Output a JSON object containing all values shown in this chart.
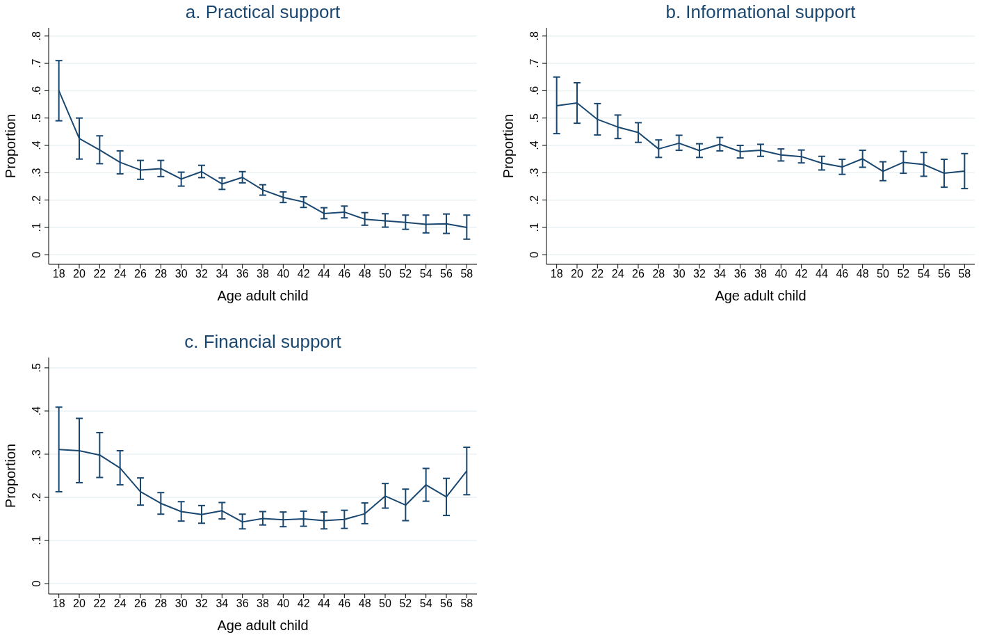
{
  "chart_data": [
    {
      "type": "line",
      "title": "a. Practical support",
      "xlabel": "Age adult child",
      "ylabel": "Proportion",
      "x": [
        18,
        20,
        22,
        24,
        26,
        28,
        30,
        32,
        34,
        36,
        38,
        40,
        42,
        44,
        46,
        48,
        50,
        52,
        54,
        56,
        58
      ],
      "xlim": [
        17,
        59
      ],
      "xticks": [
        18,
        20,
        22,
        24,
        26,
        28,
        30,
        32,
        34,
        36,
        38,
        40,
        42,
        44,
        46,
        48,
        50,
        52,
        54,
        56,
        58
      ],
      "ylim": [
        -0.035,
        0.83
      ],
      "yticks": [
        {
          "value": 0,
          "label": "0"
        },
        {
          "value": 0.1,
          "label": ".1"
        },
        {
          "value": 0.2,
          "label": ".2"
        },
        {
          "value": 0.3,
          "label": ".3"
        },
        {
          "value": 0.4,
          "label": ".4"
        },
        {
          "value": 0.5,
          "label": ".5"
        },
        {
          "value": 0.6,
          "label": ".6"
        },
        {
          "value": 0.7,
          "label": ".7"
        },
        {
          "value": 0.8,
          "label": ".8"
        }
      ],
      "grid": "y",
      "marker": "none",
      "line_style": "solid",
      "legend": false,
      "series": [
        {
          "color": "#1a476f",
          "values": [
            0.6,
            0.425,
            0.383,
            0.338,
            0.31,
            0.315,
            0.277,
            0.304,
            0.259,
            0.283,
            0.237,
            0.21,
            0.193,
            0.151,
            0.156,
            0.13,
            0.124,
            0.118,
            0.111,
            0.113,
            0.1
          ],
          "errors": [
            [
              0.49,
              0.71
            ],
            [
              0.35,
              0.5
            ],
            [
              0.333,
              0.435
            ],
            [
              0.296,
              0.38
            ],
            [
              0.276,
              0.345
            ],
            [
              0.286,
              0.345
            ],
            [
              0.251,
              0.302
            ],
            [
              0.282,
              0.327
            ],
            [
              0.239,
              0.281
            ],
            [
              0.263,
              0.304
            ],
            [
              0.218,
              0.256
            ],
            [
              0.191,
              0.23
            ],
            [
              0.173,
              0.212
            ],
            [
              0.132,
              0.172
            ],
            [
              0.135,
              0.178
            ],
            [
              0.108,
              0.154
            ],
            [
              0.101,
              0.15
            ],
            [
              0.093,
              0.145
            ],
            [
              0.08,
              0.145
            ],
            [
              0.078,
              0.149
            ],
            [
              0.057,
              0.145
            ]
          ]
        }
      ]
    },
    {
      "type": "line",
      "title": "b. Informational support",
      "xlabel": "Age adult child",
      "ylabel": "Proportion",
      "x": [
        18,
        20,
        22,
        24,
        26,
        28,
        30,
        32,
        34,
        36,
        38,
        40,
        42,
        44,
        46,
        48,
        50,
        52,
        54,
        56,
        58
      ],
      "xlim": [
        17,
        59
      ],
      "xticks": [
        18,
        20,
        22,
        24,
        26,
        28,
        30,
        32,
        34,
        36,
        38,
        40,
        42,
        44,
        46,
        48,
        50,
        52,
        54,
        56,
        58
      ],
      "ylim": [
        -0.035,
        0.83
      ],
      "yticks": [
        {
          "value": 0,
          "label": "0"
        },
        {
          "value": 0.1,
          "label": ".1"
        },
        {
          "value": 0.2,
          "label": ".2"
        },
        {
          "value": 0.3,
          "label": ".3"
        },
        {
          "value": 0.4,
          "label": ".4"
        },
        {
          "value": 0.5,
          "label": ".5"
        },
        {
          "value": 0.6,
          "label": ".6"
        },
        {
          "value": 0.7,
          "label": ".7"
        },
        {
          "value": 0.8,
          "label": ".8"
        }
      ],
      "grid": "y",
      "marker": "none",
      "line_style": "solid",
      "legend": false,
      "series": [
        {
          "color": "#1a476f",
          "values": [
            0.545,
            0.555,
            0.495,
            0.467,
            0.447,
            0.387,
            0.408,
            0.381,
            0.404,
            0.377,
            0.382,
            0.365,
            0.359,
            0.335,
            0.321,
            0.351,
            0.305,
            0.338,
            0.33,
            0.298,
            0.306
          ],
          "errors": [
            [
              0.443,
              0.65
            ],
            [
              0.481,
              0.629
            ],
            [
              0.438,
              0.553
            ],
            [
              0.425,
              0.511
            ],
            [
              0.411,
              0.483
            ],
            [
              0.356,
              0.42
            ],
            [
              0.382,
              0.437
            ],
            [
              0.356,
              0.406
            ],
            [
              0.38,
              0.429
            ],
            [
              0.354,
              0.4
            ],
            [
              0.36,
              0.404
            ],
            [
              0.343,
              0.387
            ],
            [
              0.336,
              0.383
            ],
            [
              0.31,
              0.36
            ],
            [
              0.294,
              0.349
            ],
            [
              0.32,
              0.382
            ],
            [
              0.271,
              0.34
            ],
            [
              0.298,
              0.378
            ],
            [
              0.287,
              0.374
            ],
            [
              0.247,
              0.349
            ],
            [
              0.242,
              0.37
            ]
          ]
        }
      ]
    },
    {
      "type": "line",
      "title": "c. Financial support",
      "xlabel": "Age adult child",
      "ylabel": "Proportion",
      "x": [
        18,
        20,
        22,
        24,
        26,
        28,
        30,
        32,
        34,
        36,
        38,
        40,
        42,
        44,
        46,
        48,
        50,
        52,
        54,
        56,
        58
      ],
      "xlim": [
        17,
        59
      ],
      "xticks": [
        18,
        20,
        22,
        24,
        26,
        28,
        30,
        32,
        34,
        36,
        38,
        40,
        42,
        44,
        46,
        48,
        50,
        52,
        54,
        56,
        58
      ],
      "ylim": [
        -0.024,
        0.524
      ],
      "yticks": [
        {
          "value": 0,
          "label": "0"
        },
        {
          "value": 0.1,
          "label": ".1"
        },
        {
          "value": 0.2,
          "label": ".2"
        },
        {
          "value": 0.3,
          "label": ".3"
        },
        {
          "value": 0.4,
          "label": ".4"
        },
        {
          "value": 0.5,
          "label": ".5"
        }
      ],
      "grid": "y",
      "marker": "none",
      "line_style": "solid",
      "legend": false,
      "series": [
        {
          "color": "#1a476f",
          "values": [
            0.311,
            0.308,
            0.298,
            0.268,
            0.213,
            0.186,
            0.167,
            0.16,
            0.169,
            0.143,
            0.151,
            0.148,
            0.15,
            0.146,
            0.149,
            0.162,
            0.203,
            0.182,
            0.229,
            0.201,
            0.261
          ],
          "errors": [
            [
              0.213,
              0.409
            ],
            [
              0.234,
              0.383
            ],
            [
              0.246,
              0.35
            ],
            [
              0.229,
              0.308
            ],
            [
              0.182,
              0.245
            ],
            [
              0.161,
              0.211
            ],
            [
              0.145,
              0.19
            ],
            [
              0.14,
              0.181
            ],
            [
              0.15,
              0.188
            ],
            [
              0.127,
              0.161
            ],
            [
              0.136,
              0.167
            ],
            [
              0.132,
              0.166
            ],
            [
              0.133,
              0.168
            ],
            [
              0.127,
              0.166
            ],
            [
              0.128,
              0.17
            ],
            [
              0.139,
              0.187
            ],
            [
              0.175,
              0.232
            ],
            [
              0.146,
              0.219
            ],
            [
              0.191,
              0.267
            ],
            [
              0.158,
              0.244
            ],
            [
              0.206,
              0.316
            ]
          ]
        }
      ]
    }
  ]
}
